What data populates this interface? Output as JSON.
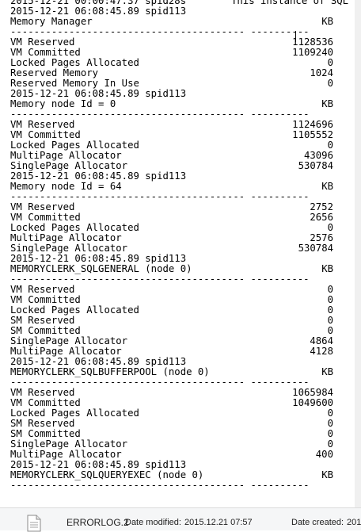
{
  "log": {
    "lines": [
      {
        "kind": "text",
        "left": "2015-12-21 00:00:47.37 spid28s",
        "right2": "This instance of SQL"
      },
      {
        "kind": "text",
        "left": "2015-12-21 06:08:45.89 spid113"
      },
      {
        "kind": "kv",
        "left": "Memory Manager",
        "right": "KB"
      },
      {
        "kind": "sep"
      },
      {
        "kind": "kv",
        "left": "VM Reserved",
        "right": "1128536"
      },
      {
        "kind": "kv",
        "left": "VM Committed",
        "right": "1109240"
      },
      {
        "kind": "kv",
        "left": "Locked Pages Allocated",
        "right": "0"
      },
      {
        "kind": "kv",
        "left": "Reserved Memory",
        "right": "1024"
      },
      {
        "kind": "kv",
        "left": "Reserved Memory In Use",
        "right": "0"
      },
      {
        "kind": "text",
        "left": "2015-12-21 06:08:45.89 spid113"
      },
      {
        "kind": "kv",
        "left": "Memory node Id = 0",
        "right": "KB"
      },
      {
        "kind": "sep"
      },
      {
        "kind": "kv",
        "left": "VM Reserved",
        "right": "1124696"
      },
      {
        "kind": "kv",
        "left": "VM Committed",
        "right": "1105552"
      },
      {
        "kind": "kv",
        "left": "Locked Pages Allocated",
        "right": "0"
      },
      {
        "kind": "kv",
        "left": "MultiPage Allocator",
        "right": "43096"
      },
      {
        "kind": "kv",
        "left": "SinglePage Allocator",
        "right": "530784"
      },
      {
        "kind": "text",
        "left": "2015-12-21 06:08:45.89 spid113"
      },
      {
        "kind": "kv",
        "left": "Memory node Id = 64",
        "right": "KB"
      },
      {
        "kind": "sep"
      },
      {
        "kind": "kv",
        "left": "VM Reserved",
        "right": "2752"
      },
      {
        "kind": "kv",
        "left": "VM Committed",
        "right": "2656"
      },
      {
        "kind": "kv",
        "left": "Locked Pages Allocated",
        "right": "0"
      },
      {
        "kind": "kv",
        "left": "MultiPage Allocator",
        "right": "2576"
      },
      {
        "kind": "kv",
        "left": "SinglePage Allocator",
        "right": "530784"
      },
      {
        "kind": "text",
        "left": "2015-12-21 06:08:45.89 spid113"
      },
      {
        "kind": "kv",
        "left": "MEMORYCLERK_SQLGENERAL (node 0)",
        "right": "KB"
      },
      {
        "kind": "sep"
      },
      {
        "kind": "kv",
        "left": "VM Reserved",
        "right": "0"
      },
      {
        "kind": "kv",
        "left": "VM Committed",
        "right": "0"
      },
      {
        "kind": "kv",
        "left": "Locked Pages Allocated",
        "right": "0"
      },
      {
        "kind": "kv",
        "left": "SM Reserved",
        "right": "0"
      },
      {
        "kind": "kv",
        "left": "SM Committed",
        "right": "0"
      },
      {
        "kind": "kv",
        "left": "SinglePage Allocator",
        "right": "4864"
      },
      {
        "kind": "kv",
        "left": "MultiPage Allocator",
        "right": "4128"
      },
      {
        "kind": "text",
        "left": "2015-12-21 06:08:45.89 spid113"
      },
      {
        "kind": "kv",
        "left": "MEMORYCLERK_SQLBUFFERPOOL (node 0)",
        "right": "KB"
      },
      {
        "kind": "sep"
      },
      {
        "kind": "kv",
        "left": "VM Reserved",
        "right": "1065984"
      },
      {
        "kind": "kv",
        "left": "VM Committed",
        "right": "1049600"
      },
      {
        "kind": "kv",
        "left": "Locked Pages Allocated",
        "right": "0"
      },
      {
        "kind": "kv",
        "left": "SM Reserved",
        "right": "0"
      },
      {
        "kind": "kv",
        "left": "SM Committed",
        "right": "0"
      },
      {
        "kind": "kv",
        "left": "SinglePage Allocator",
        "right": "0"
      },
      {
        "kind": "kv",
        "left": "MultiPage Allocator",
        "right": "400"
      },
      {
        "kind": "text",
        "left": "2015-12-21 06:08:45.89 spid113"
      },
      {
        "kind": "kv",
        "left": "MEMORYCLERK_SQLQUERYEXEC (node 0)",
        "right": "KB"
      },
      {
        "kind": "sep"
      }
    ],
    "separator_text": "---------------------------------------- ----------"
  },
  "status_bar": {
    "icon": "text-file-icon",
    "file_name": "ERRORLOG.2",
    "date_modified_label": "Date modified:",
    "date_modified_value": "2015.12.21 07:57",
    "date_created_label": "Date created:",
    "date_created_value": "201"
  }
}
